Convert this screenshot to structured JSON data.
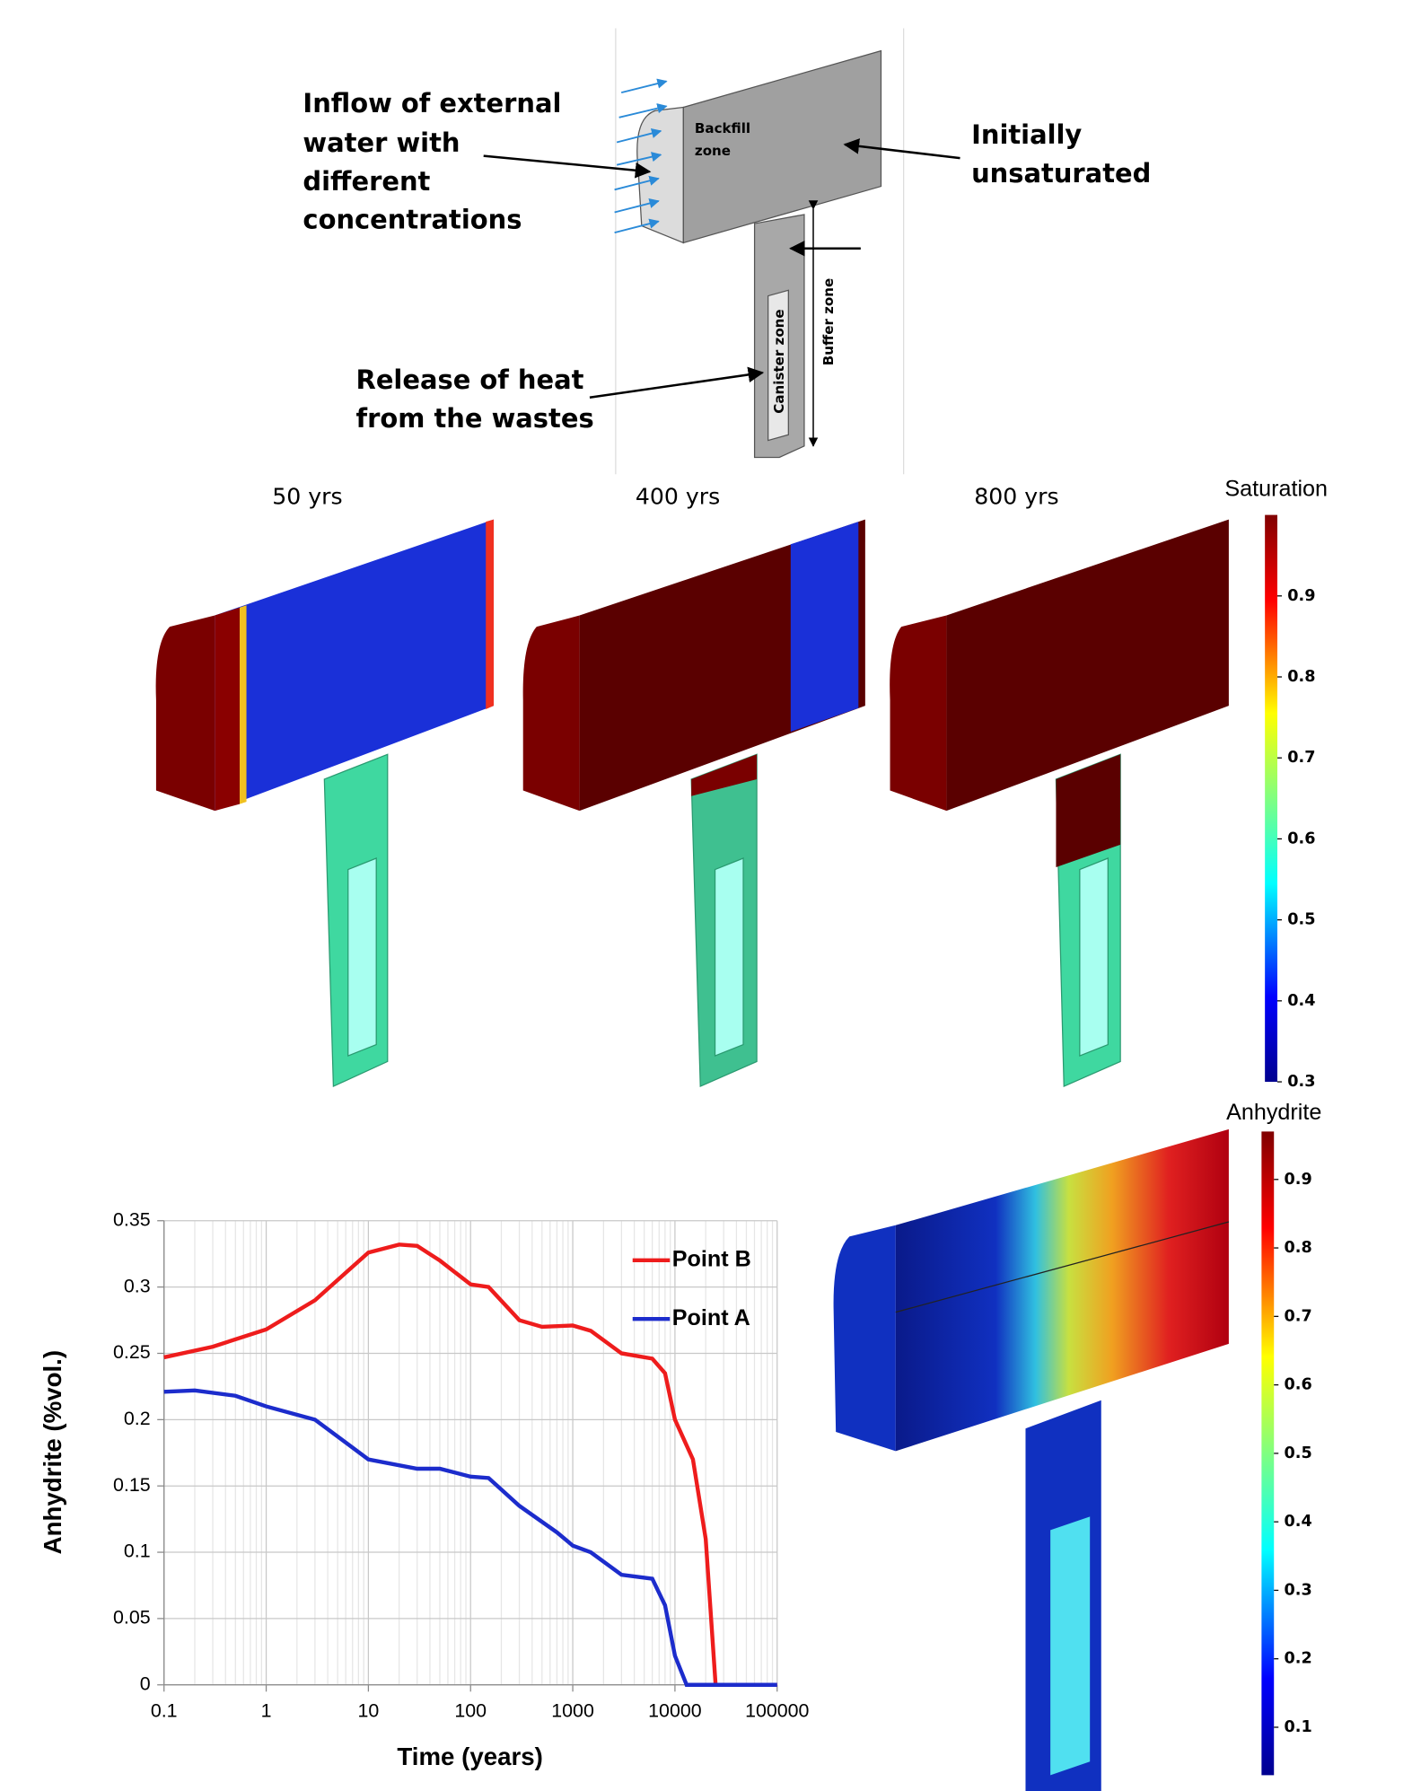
{
  "diagram": {
    "inflow_label": [
      "Inflow of external",
      "water with",
      "different",
      "concentrations"
    ],
    "unsaturated_label": [
      "Initially",
      "unsaturated"
    ],
    "heat_label": [
      "Release of heat",
      "from the wastes"
    ],
    "backfill_label": [
      "Backfill",
      "zone"
    ],
    "buffer_label": "Buffer zone",
    "canister_label": "Canister zone"
  },
  "snapshots": [
    "50 yrs",
    "400 yrs",
    "800 yrs"
  ],
  "saturation_colorbar": {
    "title": "Saturation",
    "lim": [
      0.3,
      1.0
    ],
    "ticks": [
      0.3,
      0.4,
      0.5,
      0.6,
      0.7,
      0.8,
      0.9
    ]
  },
  "anhydrite_colorbar": {
    "title": "Anhydrite",
    "lim": [
      0.03,
      0.97
    ],
    "ticks": [
      0.1,
      0.2,
      0.3,
      0.4,
      0.5,
      0.6,
      0.7,
      0.8,
      0.9
    ]
  },
  "chart_data": {
    "type": "line",
    "x_label": "Time (years)",
    "y_label": "Anhydrite (%vol.)",
    "log_x": true,
    "grid": true,
    "legend": "upper right",
    "xlim": [
      0.1,
      100000
    ],
    "xticks": [
      0.1,
      1,
      10,
      100,
      1000,
      10000,
      100000
    ],
    "ylim": [
      0,
      0.35
    ],
    "yticks": [
      0,
      0.05,
      0.1,
      0.15,
      0.2,
      0.25,
      0.3,
      0.35
    ],
    "series": [
      {
        "name": "Point B",
        "color": "#ee1c1c",
        "x": [
          0.1,
          0.3,
          1,
          3,
          10,
          20,
          30,
          50,
          100,
          150,
          300,
          500,
          1000,
          1500,
          3000,
          6000,
          8000,
          10000,
          15000,
          20000,
          25000,
          100000
        ],
        "values": [
          0.247,
          0.255,
          0.268,
          0.29,
          0.326,
          0.332,
          0.331,
          0.32,
          0.302,
          0.3,
          0.275,
          0.27,
          0.271,
          0.267,
          0.25,
          0.246,
          0.235,
          0.2,
          0.17,
          0.11,
          0,
          0
        ]
      },
      {
        "name": "Point A",
        "color": "#1c2ccc",
        "x": [
          0.1,
          0.2,
          0.5,
          1,
          3,
          10,
          30,
          50,
          100,
          150,
          300,
          700,
          1000,
          1500,
          3000,
          6000,
          8000,
          10000,
          13000,
          100000
        ],
        "values": [
          0.221,
          0.222,
          0.218,
          0.21,
          0.2,
          0.17,
          0.163,
          0.163,
          0.157,
          0.156,
          0.135,
          0.115,
          0.105,
          0.1,
          0.083,
          0.08,
          0.06,
          0.022,
          0,
          0
        ]
      }
    ]
  }
}
